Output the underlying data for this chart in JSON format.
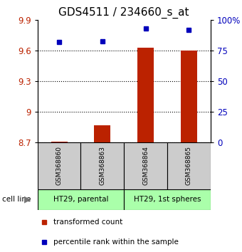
{
  "title": "GDS4511 / 234660_s_at",
  "samples": [
    "GSM368860",
    "GSM368863",
    "GSM368864",
    "GSM368865"
  ],
  "red_values": [
    8.71,
    8.87,
    9.63,
    9.6
  ],
  "blue_values": [
    82,
    83,
    93,
    92
  ],
  "ylim_left": [
    8.7,
    9.9
  ],
  "ylim_right": [
    0,
    100
  ],
  "yticks_left": [
    8.7,
    9.0,
    9.3,
    9.6,
    9.9
  ],
  "yticks_right": [
    0,
    25,
    50,
    75,
    100
  ],
  "ytick_labels_left": [
    "8.7",
    "9",
    "9.3",
    "9.6",
    "9.9"
  ],
  "ytick_labels_right": [
    "0",
    "25",
    "50",
    "75",
    "100%"
  ],
  "cell_lines": [
    "HT29, parental",
    "HT29, 1st spheres"
  ],
  "cell_line_spans": [
    [
      0,
      2
    ],
    [
      2,
      4
    ]
  ],
  "bar_color": "#bb2200",
  "dot_color": "#0000bb",
  "bar_bottom": 8.7,
  "bg_color": "#ffffff",
  "sample_bg": "#cccccc",
  "cell_bg": "#aaffaa",
  "title_fontsize": 11
}
